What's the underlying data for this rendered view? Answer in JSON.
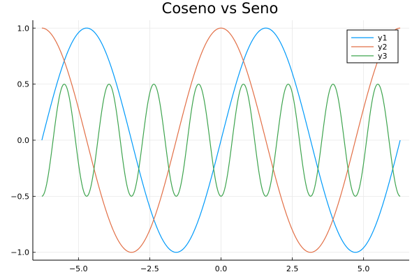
{
  "chart_data": {
    "type": "line",
    "title": "Coseno vs Seno",
    "xlabel": "",
    "ylabel": "",
    "xlim": [
      -6.6,
      6.6
    ],
    "ylim": [
      -1.07,
      1.07
    ],
    "xticks": [
      -5.0,
      -2.5,
      0.0,
      2.5,
      5.0
    ],
    "xtick_labels": [
      "−5.0",
      "−2.5",
      "0.0",
      "2.5",
      "5.0"
    ],
    "yticks": [
      -1.0,
      -0.5,
      0.0,
      0.5,
      1.0
    ],
    "ytick_labels": [
      "−1.0",
      "−0.5",
      "0.0",
      "0.5",
      "1.0"
    ],
    "grid": true,
    "legend_position": "top-right",
    "x_range": [
      -6.283,
      6.283
    ],
    "series": [
      {
        "name": "y1",
        "function": "sin(x)",
        "color": "#009AFA",
        "x": [
          -6.283,
          -5.498,
          -4.712,
          -3.927,
          -3.142,
          -2.356,
          -1.571,
          -0.785,
          0.0,
          0.785,
          1.571,
          2.356,
          3.142,
          3.927,
          4.712,
          5.498,
          6.283
        ],
        "y": [
          0.0,
          0.707,
          1.0,
          0.707,
          0.0,
          -0.707,
          -1.0,
          -0.707,
          0.0,
          0.707,
          1.0,
          0.707,
          0.0,
          -0.707,
          -1.0,
          -0.707,
          0.0
        ]
      },
      {
        "name": "y2",
        "function": "cos(x)",
        "color": "#E26F46",
        "x": [
          -6.283,
          -5.498,
          -4.712,
          -3.927,
          -3.142,
          -2.356,
          -1.571,
          -0.785,
          0.0,
          0.785,
          1.571,
          2.356,
          3.142,
          3.927,
          4.712,
          5.498,
          6.283
        ],
        "y": [
          1.0,
          0.707,
          0.0,
          -0.707,
          -1.0,
          -0.707,
          0.0,
          0.707,
          1.0,
          0.707,
          0.0,
          -0.707,
          -1.0,
          -0.707,
          0.0,
          0.707,
          1.0
        ]
      },
      {
        "name": "y3",
        "function": "-0.5*cos(4x)",
        "color": "#3EA44E",
        "x": [
          -6.283,
          -5.498,
          -4.712,
          -3.927,
          -3.142,
          -2.356,
          -1.571,
          -0.785,
          0.0,
          0.785,
          1.571,
          2.356,
          3.142,
          3.927,
          4.712,
          5.498,
          6.283
        ],
        "y": [
          -0.5,
          0.5,
          -0.5,
          0.5,
          -0.5,
          0.5,
          -0.5,
          0.5,
          -0.5,
          0.5,
          -0.5,
          0.5,
          -0.5,
          0.5,
          -0.5,
          0.5,
          -0.5
        ]
      }
    ]
  }
}
